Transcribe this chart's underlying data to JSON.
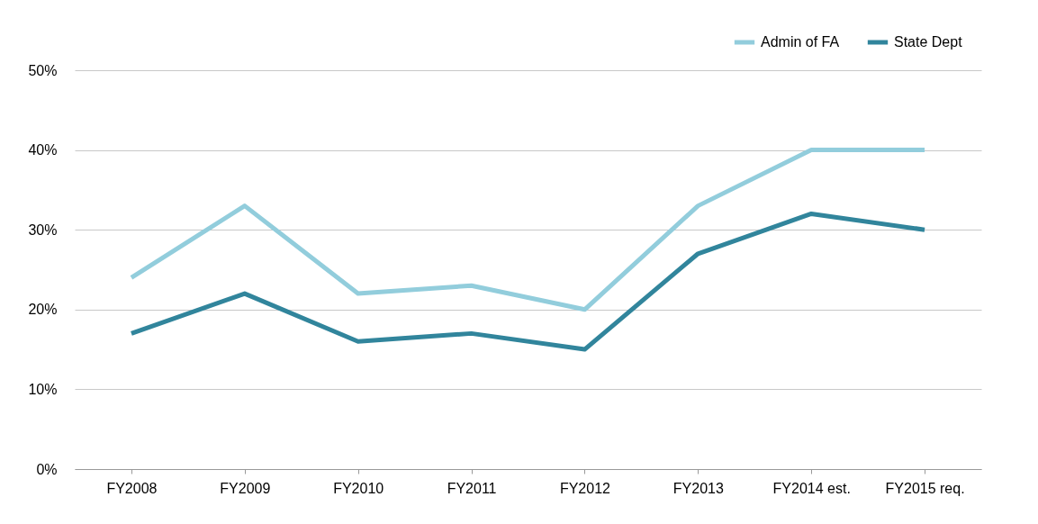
{
  "chart_data": {
    "type": "line",
    "categories": [
      "FY2008",
      "FY2009",
      "FY2010",
      "FY2011",
      "FY2012",
      "FY2013",
      "FY2014 est.",
      "FY2015 req."
    ],
    "series": [
      {
        "name": "Admin of FA",
        "color": "#92cddc",
        "values": [
          24,
          33,
          22,
          23,
          20,
          33,
          40,
          40
        ]
      },
      {
        "name": "State Dept",
        "color": "#31859c",
        "values": [
          17,
          22,
          16,
          17,
          15,
          27,
          32,
          30
        ]
      }
    ],
    "ylim": [
      0,
      50
    ],
    "yticks": [
      {
        "value": 0,
        "label": "0%"
      },
      {
        "value": 10,
        "label": "10%"
      },
      {
        "value": 20,
        "label": "20%"
      },
      {
        "value": 30,
        "label": "30%"
      },
      {
        "value": 40,
        "label": "40%"
      },
      {
        "value": 50,
        "label": "50%"
      }
    ],
    "grid": "y",
    "legend": "top right",
    "marker": "none",
    "line_style": "solid"
  }
}
